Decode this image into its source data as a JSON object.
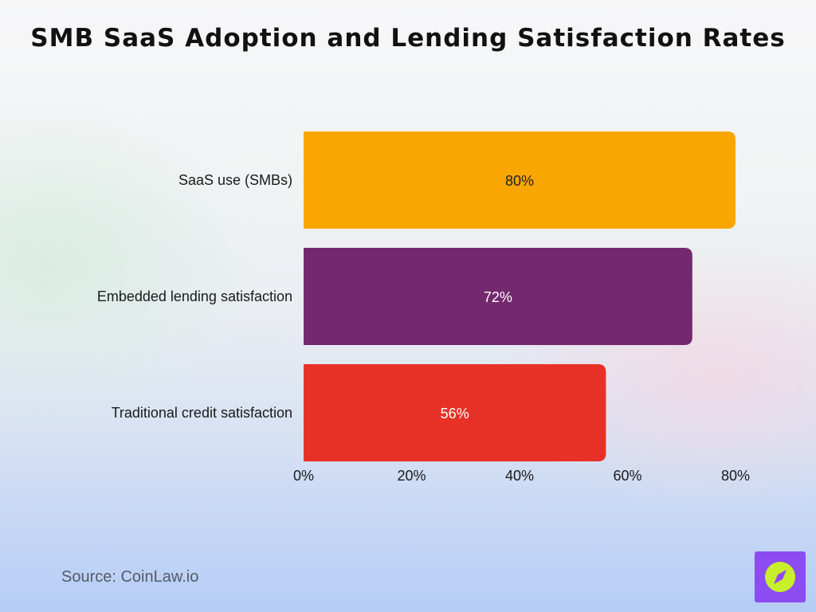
{
  "title": "SMB SaaS Adoption and Lending Satisfaction Rates",
  "source": "Source: CoinLaw.io",
  "logo_icon": "compass-icon",
  "chart_data": {
    "type": "bar",
    "orientation": "horizontal",
    "title": "SMB SaaS Adoption and Lending Satisfaction Rates",
    "xlabel": "",
    "ylabel": "",
    "categories": [
      "SaaS use (SMBs)",
      "Embedded lending satisfaction",
      "Traditional credit satisfaction"
    ],
    "values": [
      80,
      72,
      56
    ],
    "value_labels": [
      "80%",
      "72%",
      "56%"
    ],
    "colors": [
      "#f9a602",
      "#73296e",
      "#e83126"
    ],
    "label_colors": [
      "#222222",
      "#ffffff",
      "#ffffff"
    ],
    "xlim": [
      0,
      80
    ],
    "x_ticks": [
      0,
      20,
      40,
      60,
      80
    ],
    "x_tick_labels": [
      "0%",
      "20%",
      "40%",
      "60%",
      "80%"
    ],
    "grid": false,
    "legend": "none"
  }
}
